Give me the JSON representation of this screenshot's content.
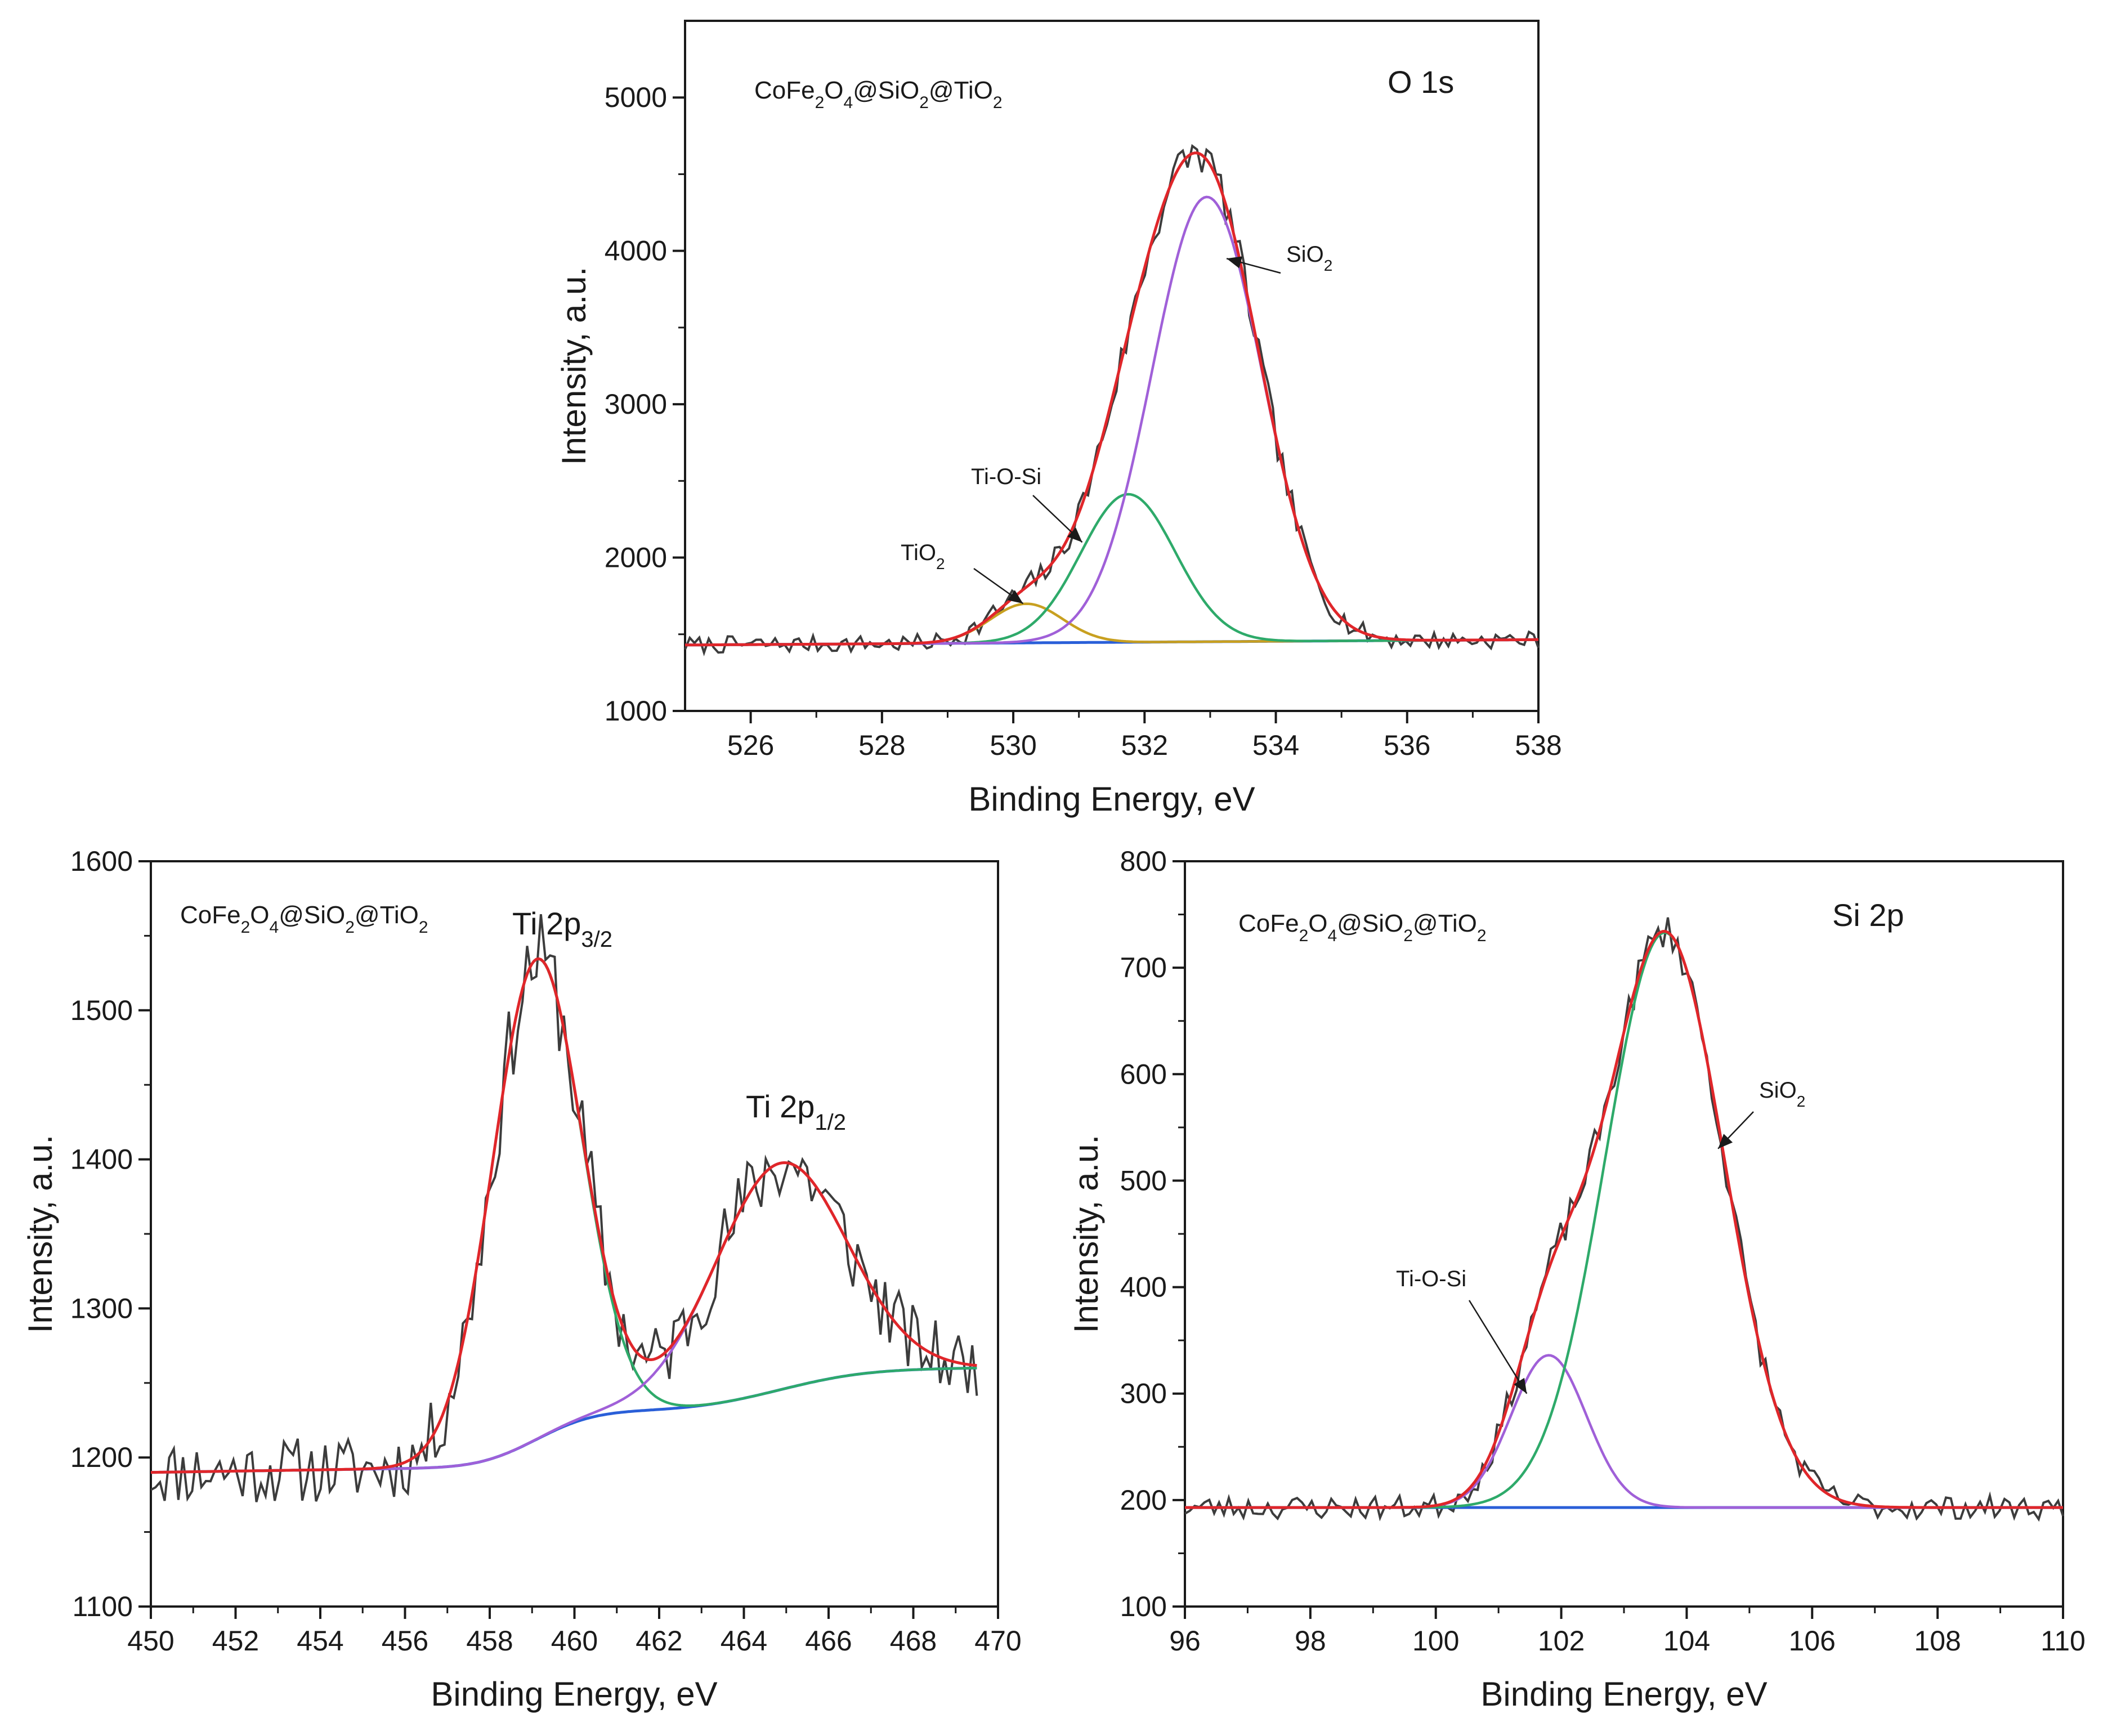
{
  "chart_data": [
    {
      "type": "line",
      "panel": "O 1s",
      "sample_label": {
        "base": "CoFe",
        "parts": [
          [
            "2",
            "O"
          ],
          [
            "4",
            "@SiO"
          ],
          [
            "2",
            "@TiO"
          ],
          [
            "2",
            ""
          ]
        ]
      },
      "sample_label_text": "CoFe2O4@SiO2@TiO2",
      "region_label": {
        "main": "O 1s",
        "sub": ""
      },
      "xlabel": "Binding Energy, eV",
      "ylabel": "Intensity, a.u.",
      "xlim": [
        525,
        538
      ],
      "ylim": [
        1000,
        5500
      ],
      "xticks": [
        526,
        528,
        530,
        532,
        534,
        536,
        538
      ],
      "yticks": [
        1000,
        2000,
        3000,
        4000,
        5000
      ],
      "background": {
        "type": "linear",
        "x": [
          525,
          538
        ],
        "y": [
          1430,
          1465
        ]
      },
      "peaks": [
        {
          "name": "TiO2",
          "center": 530.2,
          "amplitude": 255,
          "sigma": 0.55,
          "color": "#c8a020"
        },
        {
          "name": "Ti-O-Si",
          "center": 531.75,
          "amplitude": 965,
          "sigma": 0.72,
          "color": "#2eaa6a"
        },
        {
          "name": "SiO2",
          "center": 532.95,
          "amplitude": 2900,
          "sigma": 0.84,
          "color": "#a060d8"
        }
      ],
      "annotations": [
        {
          "text": "TiO",
          "sub": "2",
          "target_x": 530.15,
          "target_y": 1700
        },
        {
          "text": "Ti-O-Si",
          "sub": "",
          "target_x": 531.05,
          "target_y": 2100
        },
        {
          "text": "SiO",
          "sub": "2",
          "target_x": 533.25,
          "target_y": 3950
        }
      ],
      "noise": 55,
      "seed": 7,
      "colors": {
        "raw": "#3c3c3c",
        "envelope": "#e0262a",
        "background": "#2a5fd8"
      }
    },
    {
      "type": "line",
      "panel": "Ti 2p",
      "sample_label_text": "CoFe2O4@SiO2@TiO2",
      "region_labels": [
        {
          "main": "Ti 2p",
          "sub": "3/2"
        },
        {
          "main": "Ti 2p",
          "sub": "1/2"
        }
      ],
      "xlabel": "Binding Energy, eV",
      "ylabel": "Intensity, a.u.",
      "xlim": [
        450,
        470
      ],
      "ylim": [
        1100,
        1600
      ],
      "xticks": [
        450,
        452,
        454,
        456,
        458,
        460,
        462,
        464,
        466,
        468,
        470
      ],
      "yticks": [
        1100,
        1200,
        1300,
        1400,
        1500,
        1600
      ],
      "background": {
        "type": "shirley",
        "x": [
          450,
          469.5
        ],
        "y": [
          1190,
          1260
        ]
      },
      "peaks": [
        {
          "name": "Ti 2p3/2",
          "center": 459.1,
          "amplitude": 322,
          "sigma": 1.05,
          "color": "#2eaa6a"
        },
        {
          "name": "Ti 2p1/2",
          "center": 464.85,
          "amplitude": 152,
          "sigma": 1.55,
          "color": "#a060d8"
        }
      ],
      "noise": 22,
      "seed": 11,
      "colors": {
        "raw": "#3c3c3c",
        "envelope": "#e0262a",
        "background": "#2a5fd8"
      }
    },
    {
      "type": "line",
      "panel": "Si 2p",
      "sample_label_text": "CoFe2O4@SiO2@TiO2",
      "region_label": {
        "main": "Si 2p",
        "sub": ""
      },
      "xlabel": "Binding Energy, eV",
      "ylabel": "Intensity, a.u.",
      "xlim": [
        96,
        110
      ],
      "ylim": [
        100,
        800
      ],
      "xticks": [
        96,
        98,
        100,
        102,
        104,
        106,
        108,
        110
      ],
      "yticks": [
        100,
        200,
        300,
        400,
        500,
        600,
        700,
        800
      ],
      "background": {
        "type": "linear",
        "x": [
          96,
          110
        ],
        "y": [
          193,
          193
        ]
      },
      "peaks": [
        {
          "name": "Ti-O-Si",
          "center": 101.8,
          "amplitude": 143,
          "sigma": 0.6,
          "color": "#a060d8"
        },
        {
          "name": "SiO2",
          "center": 103.65,
          "amplitude": 540,
          "sigma": 0.95,
          "color": "#2eaa6a"
        }
      ],
      "annotations": [
        {
          "text": "Ti-O-Si",
          "sub": "",
          "target_x": 101.45,
          "target_y": 300
        },
        {
          "text": "SiO",
          "sub": "2",
          "target_x": 104.5,
          "target_y": 530
        }
      ],
      "noise": 11,
      "seed": 23,
      "colors": {
        "raw": "#3c3c3c",
        "envelope": "#e0262a",
        "background": "#2a5fd8"
      }
    }
  ]
}
